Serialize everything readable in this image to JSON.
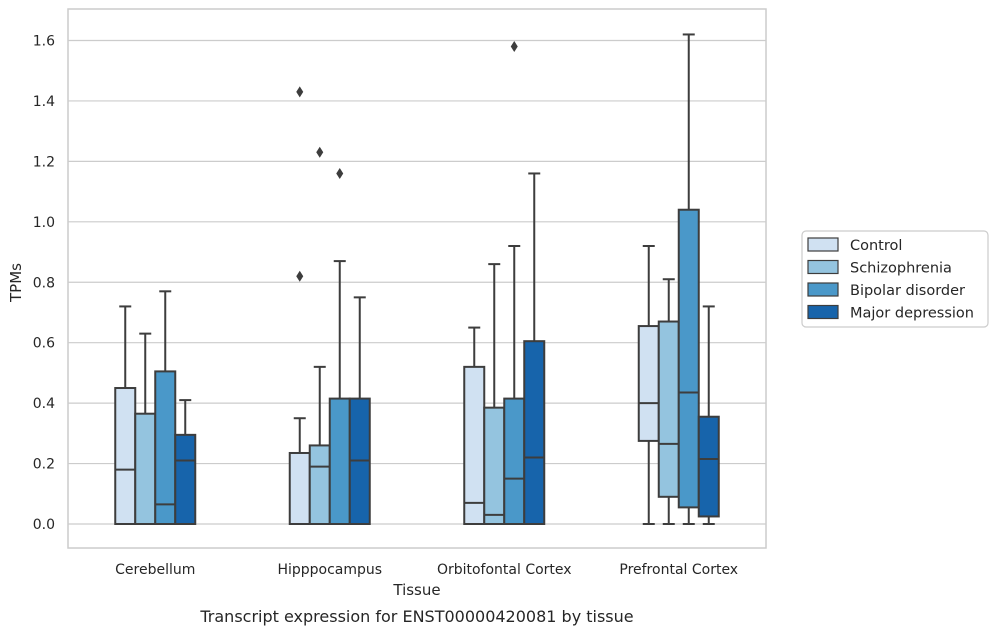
{
  "chart_data": {
    "type": "boxplot",
    "caption": "Transcript expression for ENST00000420081 by tissue",
    "xlabel": "Tissue",
    "ylabel": "TPMs",
    "ylim": [
      -0.08,
      1.7
    ],
    "yticks": [
      0.0,
      0.2,
      0.4,
      0.6,
      0.8,
      1.0,
      1.2,
      1.4,
      1.6
    ],
    "ytick_labels": [
      "0.0",
      "0.2",
      "0.4",
      "0.6",
      "0.8",
      "1.0",
      "1.2",
      "1.4",
      "1.6"
    ],
    "grid": true,
    "legend_position": "right",
    "categories": [
      "Cerebellum",
      "Hipppocampus",
      "Orbitofontal Cortex",
      "Prefrontal Cortex"
    ],
    "series": [
      {
        "name": "Control",
        "color": "#d0e1f2",
        "boxes": [
          {
            "whislo": 0.0,
            "q1": 0.0,
            "med": 0.18,
            "q3": 0.45,
            "whishi": 0.72,
            "fliers": []
          },
          {
            "whislo": 0.0,
            "q1": 0.0,
            "med": 0.0,
            "q3": 0.235,
            "whishi": 0.35,
            "fliers": [
              0.82,
              1.43
            ]
          },
          {
            "whislo": 0.0,
            "q1": 0.0,
            "med": 0.07,
            "q3": 0.52,
            "whishi": 0.65,
            "fliers": []
          },
          {
            "whislo": 0.0,
            "q1": 0.275,
            "med": 0.4,
            "q3": 0.655,
            "whishi": 0.92,
            "fliers": []
          }
        ]
      },
      {
        "name": "Schizophrenia",
        "color": "#94c4df",
        "boxes": [
          {
            "whislo": 0.0,
            "q1": 0.0,
            "med": 0.0,
            "q3": 0.365,
            "whishi": 0.63,
            "fliers": []
          },
          {
            "whislo": 0.0,
            "q1": 0.0,
            "med": 0.19,
            "q3": 0.26,
            "whishi": 0.52,
            "fliers": [
              1.23
            ]
          },
          {
            "whislo": 0.0,
            "q1": 0.0,
            "med": 0.03,
            "q3": 0.385,
            "whishi": 0.86,
            "fliers": []
          },
          {
            "whislo": 0.0,
            "q1": 0.09,
            "med": 0.265,
            "q3": 0.67,
            "whishi": 0.81,
            "fliers": []
          }
        ]
      },
      {
        "name": "Bipolar disorder",
        "color": "#4a98c9",
        "boxes": [
          {
            "whislo": 0.0,
            "q1": 0.0,
            "med": 0.065,
            "q3": 0.505,
            "whishi": 0.77,
            "fliers": []
          },
          {
            "whislo": 0.0,
            "q1": 0.0,
            "med": 0.0,
            "q3": 0.415,
            "whishi": 0.87,
            "fliers": [
              1.16
            ]
          },
          {
            "whislo": 0.0,
            "q1": 0.0,
            "med": 0.15,
            "q3": 0.415,
            "whishi": 0.92,
            "fliers": [
              1.58
            ]
          },
          {
            "whislo": 0.0,
            "q1": 0.055,
            "med": 0.435,
            "q3": 1.04,
            "whishi": 1.62,
            "fliers": []
          }
        ]
      },
      {
        "name": "Major depression",
        "color": "#1764ab",
        "boxes": [
          {
            "whislo": 0.0,
            "q1": 0.0,
            "med": 0.21,
            "q3": 0.295,
            "whishi": 0.41,
            "fliers": []
          },
          {
            "whislo": 0.0,
            "q1": 0.0,
            "med": 0.21,
            "q3": 0.415,
            "whishi": 0.75,
            "fliers": []
          },
          {
            "whislo": 0.0,
            "q1": 0.0,
            "med": 0.22,
            "q3": 0.605,
            "whishi": 1.16,
            "fliers": []
          },
          {
            "whislo": 0.0,
            "q1": 0.025,
            "med": 0.215,
            "q3": 0.355,
            "whishi": 0.72,
            "fliers": []
          }
        ]
      }
    ],
    "colors": {
      "grid": "#cccccc",
      "spine": "#cccccc",
      "box_edge": "#3d3d3d",
      "legend_border": "#cccccc"
    }
  }
}
